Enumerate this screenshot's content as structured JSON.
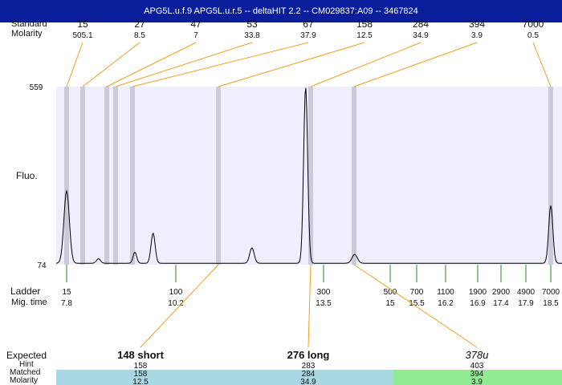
{
  "window_title": "APG5L.u.f.9  APG5L.u.r.5 -- deltaHIT 2.2 -- CM029837:A09 -- 3467824",
  "row_labels": {
    "standard": "Standard",
    "molarity": "Molarity",
    "fluo": "Fluo.",
    "ladder": "Ladder",
    "mig_time": "Mig. time",
    "expected": "Expected",
    "hint": "Hint",
    "matched": "Matched",
    "molarity_bottom": "Molarity"
  },
  "colors": {
    "title_bar": "#0a1e9c",
    "plot_bg": "#eeeefc",
    "band": "#cacad8",
    "connector": "#f0a020",
    "ladder_tick": "#2a8a2a",
    "matched_blue": "#a8d8e4",
    "matched_green": "#90ec90"
  },
  "chart_data": {
    "type": "line",
    "y_top_label": "559",
    "y_bottom_label": "74",
    "ylim": [
      74,
      559
    ],
    "standards": [
      {
        "size": "15",
        "molarity": "505.1"
      },
      {
        "size": "27",
        "molarity": "8.5"
      },
      {
        "size": "47",
        "molarity": "7"
      },
      {
        "size": "53",
        "molarity": "33.8"
      },
      {
        "size": "67",
        "molarity": "37.9"
      },
      {
        "size": "158",
        "molarity": "12.5"
      },
      {
        "size": "284",
        "molarity": "34.9"
      },
      {
        "size": "394",
        "molarity": "3.9"
      },
      {
        "size": "7000",
        "molarity": "0.5"
      }
    ],
    "ladder": [
      {
        "size": "15",
        "time": "7.8"
      },
      {
        "size": "100",
        "time": "10.2"
      },
      {
        "size": "300",
        "time": "13.5"
      },
      {
        "size": "500",
        "time": "15"
      },
      {
        "size": "700",
        "time": "15.5"
      },
      {
        "size": "1100",
        "time": "16.2"
      },
      {
        "size": "1900",
        "time": "16.9"
      },
      {
        "size": "2900",
        "time": "17.4"
      },
      {
        "size": "4900",
        "time": "17.9"
      },
      {
        "size": "7000",
        "time": "18.5"
      }
    ],
    "peaks": [
      {
        "time": 7.8,
        "height": 275
      },
      {
        "time": 8.5,
        "height": 90
      },
      {
        "time": 9.3,
        "height": 108
      },
      {
        "time": 9.7,
        "height": 160
      },
      {
        "time": 11.9,
        "height": 120
      },
      {
        "time": 13.1,
        "height": 559
      },
      {
        "time": 14.2,
        "height": 102
      },
      {
        "time": 18.5,
        "height": 235
      }
    ],
    "expected": [
      {
        "label": "148 short",
        "hint": "158",
        "matched": "158",
        "molarity": "12.5"
      },
      {
        "label": "276 long",
        "hint": "283",
        "matched": "284",
        "molarity": "34.9"
      },
      {
        "label": "378u",
        "hint": "403",
        "matched": "394",
        "molarity": "3.9"
      }
    ]
  }
}
